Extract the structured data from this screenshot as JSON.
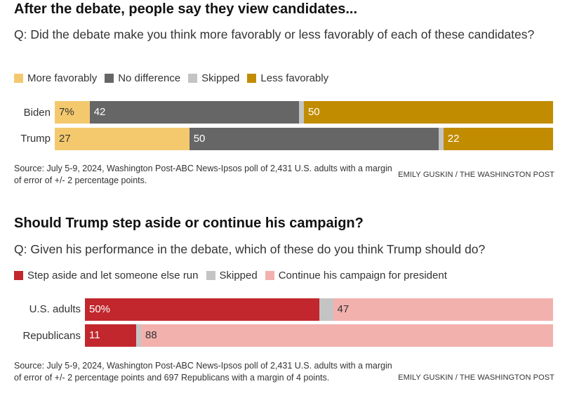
{
  "chart_data": [
    {
      "type": "bar",
      "orientation": "horizontal",
      "stacked": true,
      "title": "After the debate, people say they view candidates...",
      "question": "Q: Did the debate make you think more favorably or less favorably of each of these candidates?",
      "categories": [
        "Biden",
        "Trump"
      ],
      "series": [
        {
          "name": "More favorably",
          "color": "#f4c96e",
          "values": [
            7,
            27
          ],
          "labels": [
            "7%",
            "27"
          ],
          "label_color": "#333333"
        },
        {
          "name": "No difference",
          "color": "#666666",
          "values": [
            42,
            50
          ],
          "labels": [
            "42",
            "50"
          ],
          "label_color": "#ffffff"
        },
        {
          "name": "Skipped",
          "color": "#c4c4c4",
          "values": [
            1,
            1
          ],
          "labels": [
            "",
            ""
          ],
          "label_color": "#333333"
        },
        {
          "name": "Less favorably",
          "color": "#c18c00",
          "values": [
            50,
            22
          ],
          "labels": [
            "50",
            "22"
          ],
          "label_color": "#ffffff"
        }
      ],
      "source": "Source: July 5-9, 2024, Washington Post-ABC News-Ipsos poll of 2,431 U.S. adults with a margin of error of +/- 2 percentage points.",
      "credit": "EMILY GUSKIN / THE WASHINGTON POST"
    },
    {
      "type": "bar",
      "orientation": "horizontal",
      "stacked": true,
      "title": "Should Trump step aside or continue his campaign?",
      "question": "Q: Given his performance in the debate, which of these do you think Trump should do?",
      "categories": [
        "U.S. adults",
        "Republicans"
      ],
      "series": [
        {
          "name": "Step aside and let someone else run",
          "color": "#c1272d",
          "values": [
            50,
            11
          ],
          "labels": [
            "50%",
            "11"
          ],
          "label_color": "#ffffff"
        },
        {
          "name": "Skipped",
          "color": "#c4c4c4",
          "values": [
            3,
            1
          ],
          "labels": [
            "",
            ""
          ],
          "label_color": "#333333"
        },
        {
          "name": "Continue his campaign for president",
          "color": "#f3b1ad",
          "values": [
            47,
            88
          ],
          "labels": [
            "47",
            "88"
          ],
          "label_color": "#333333"
        }
      ],
      "source": "Source: July 5-9, 2024, Washington Post-ABC News-Ipsos poll of 2,431 U.S. adults with a margin of error of +/- 2 percentage points and 697 Republicans with a margin of 4 points.",
      "credit": "EMILY GUSKIN / THE WASHINGTON POST"
    }
  ]
}
